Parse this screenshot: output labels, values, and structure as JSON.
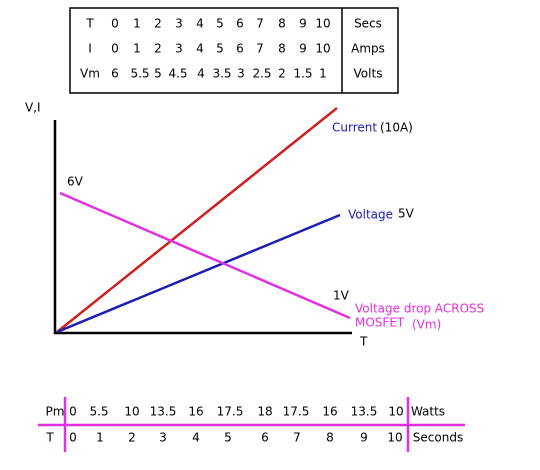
{
  "top_table": {
    "rows": [
      [
        "T",
        "0",
        "1",
        "2",
        "3",
        "4",
        "5",
        "6",
        "7",
        "8",
        "9",
        "10",
        "Secs"
      ],
      [
        "I",
        "0",
        "1",
        "2",
        "3",
        "4",
        "5",
        "6",
        "7",
        "8",
        "9",
        "10",
        "Amps"
      ],
      [
        "Vm",
        "6",
        "5.5",
        "5",
        "4.5",
        "4",
        "3.5",
        "3",
        "2.5",
        "2",
        "1.5",
        "1",
        "Volts"
      ]
    ]
  },
  "graph": {
    "y_axis_label": "V,I",
    "x_axis_label": "T",
    "start_voltage_label": "6V",
    "current_label": "Current",
    "current_max_label": "(10A)",
    "voltage_label": "Voltage",
    "voltage_max_label": "5V",
    "end_voltage_label": "1V",
    "vm_label_lines": [
      "Voltage drop ACROSS",
      "MOSFET"
    ],
    "vm_symbol": "(Vm)"
  },
  "bottom_table": {
    "rows": [
      [
        "Pm",
        "0",
        "5.5",
        "10",
        "13.5",
        "16",
        "17.5",
        "18",
        "17.5",
        "16",
        "13.5",
        "10",
        "Watts"
      ],
      [
        "T",
        "0",
        "1",
        "2",
        "3",
        "4",
        "5",
        "6",
        "7",
        "8",
        "9",
        "10",
        "Seconds"
      ]
    ]
  }
}
